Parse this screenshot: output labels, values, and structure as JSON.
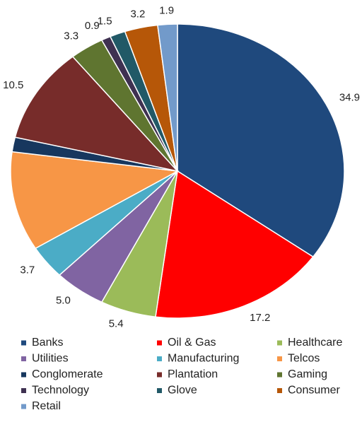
{
  "chart_data": {
    "type": "pie",
    "categories": [
      "Banks",
      "Oil & Gas",
      "Healthcare",
      "Utilities",
      "Manufacturing",
      "Telcos",
      "Conglomerate",
      "Plantation",
      "Gaming",
      "Technology",
      "Glove",
      "Consumer",
      "Retail"
    ],
    "values": [
      34.9,
      17.2,
      5.4,
      5.0,
      3.7,
      10.9,
      1.6,
      10.5,
      3.3,
      0.9,
      1.5,
      3.2,
      1.9
    ],
    "value_labels": [
      "34.9",
      "17.2",
      "5.4",
      "5.0",
      "3.7",
      "10.9",
      "1.6",
      "10.5",
      "3.3",
      "0.9",
      "1.5",
      "3.2",
      "1.9"
    ],
    "colors": [
      "#1f497d",
      "#ff0000",
      "#9bbb59",
      "#8064a2",
      "#4bacc6",
      "#f79646",
      "#17375e",
      "#772c2a",
      "#5f7530",
      "#3f3151",
      "#215967",
      "#b65708",
      "#729aca"
    ],
    "legend": "bottom"
  }
}
